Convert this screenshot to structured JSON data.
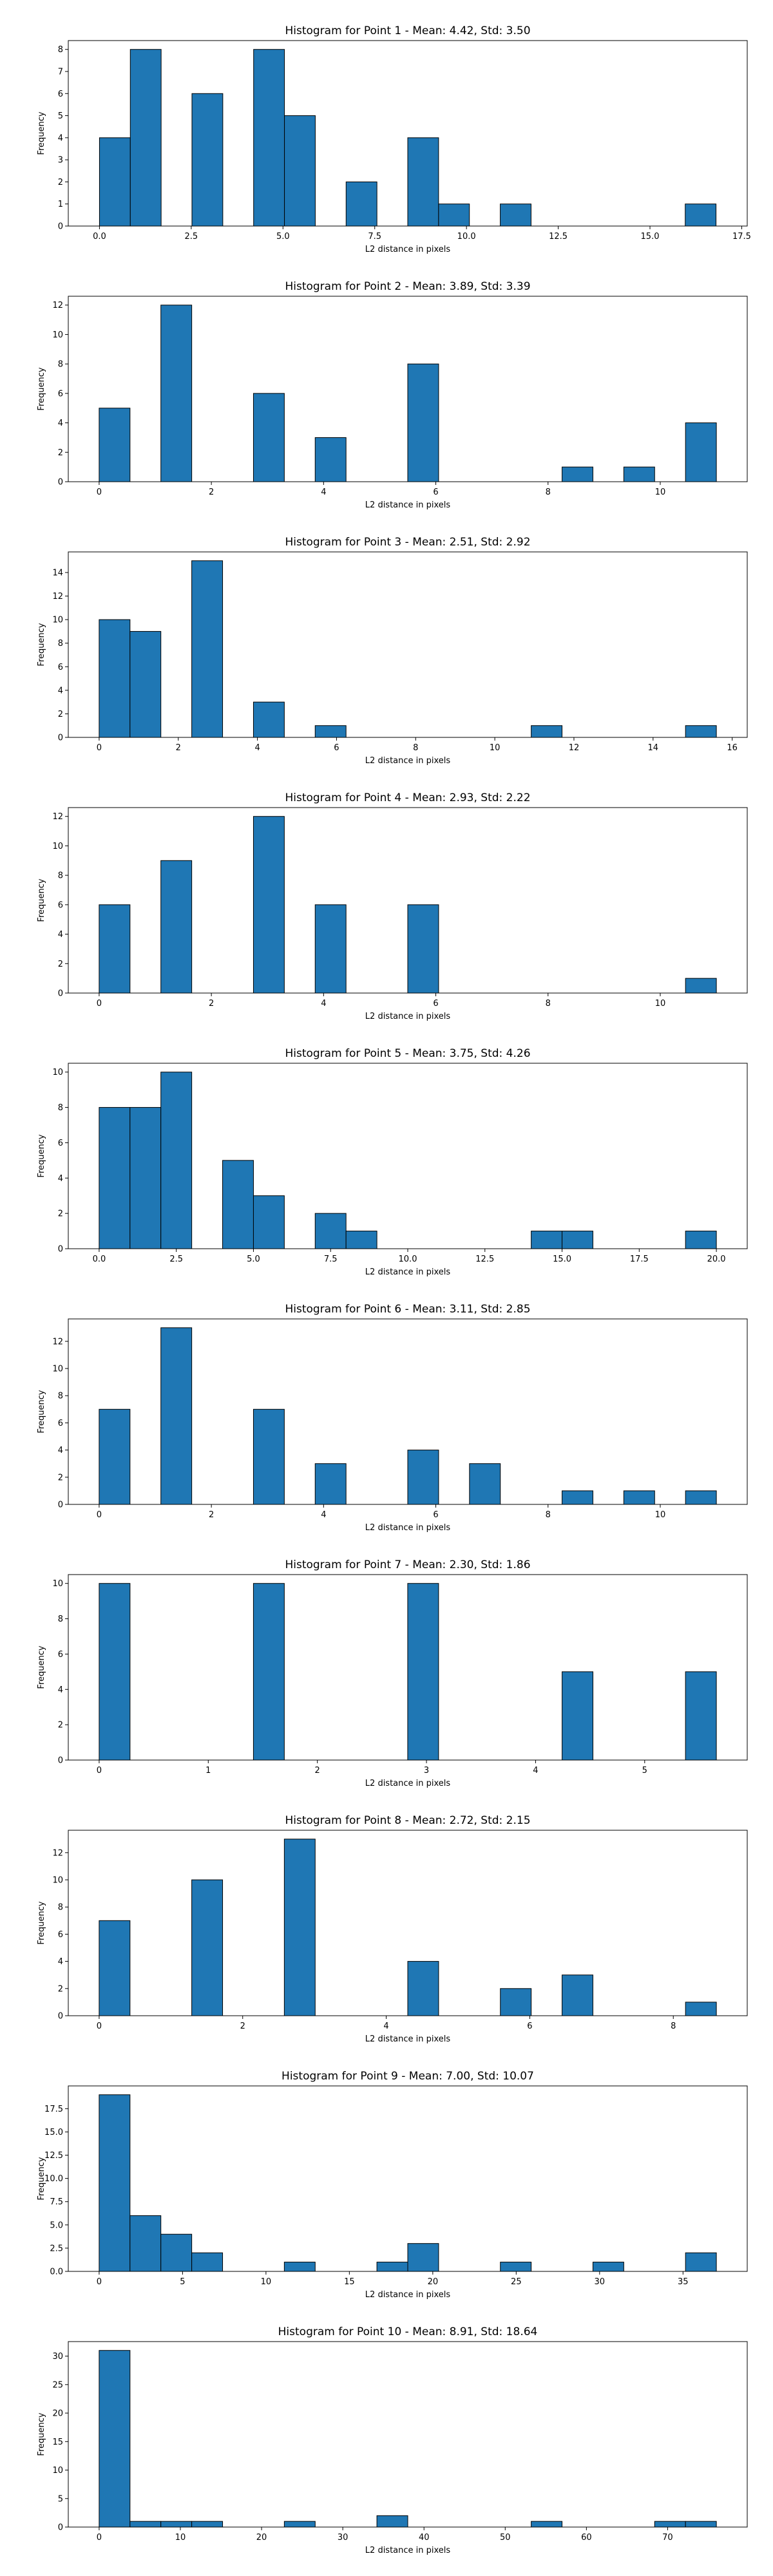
{
  "colors": {
    "bar_fill": "#1f77b4",
    "bar_edge": "#000000",
    "axis": "#000000"
  },
  "chart_data": [
    {
      "type": "bar",
      "title": "Histogram for Point 1 - Mean: 4.42, Std: 3.50",
      "xlabel": "L2 distance in pixels",
      "ylabel": "Frequency",
      "xlim": [
        -0.85,
        17.65
      ],
      "ylim": [
        0,
        8.4
      ],
      "xticks": [
        0.0,
        2.5,
        5.0,
        7.5,
        10.0,
        12.5,
        15.0,
        17.5
      ],
      "xtick_labels": [
        "0.0",
        "2.5",
        "5.0",
        "7.5",
        "10.0",
        "12.5",
        "15.0",
        "17.5"
      ],
      "yticks": [
        0,
        1,
        2,
        3,
        4,
        5,
        6,
        7,
        8
      ],
      "bins": [
        0,
        0.84,
        1.68,
        2.52,
        3.36,
        4.2,
        5.04,
        5.88,
        6.72,
        7.56,
        8.4,
        9.24,
        10.08,
        10.92,
        11.76,
        12.6,
        13.44,
        14.28,
        15.12,
        15.96,
        16.8
      ],
      "counts": [
        4,
        8,
        0,
        6,
        0,
        8,
        5,
        0,
        2,
        0,
        4,
        1,
        0,
        1,
        0,
        0,
        0,
        0,
        0,
        1
      ]
    },
    {
      "type": "bar",
      "title": "Histogram for Point 2 - Mean: 3.89, Std: 3.39",
      "xlabel": "L2 distance in pixels",
      "ylabel": "Frequency",
      "xlim": [
        -0.55,
        11.55
      ],
      "ylim": [
        0,
        12.6
      ],
      "xticks": [
        0,
        2,
        4,
        6,
        8,
        10
      ],
      "xtick_labels": [
        "0",
        "2",
        "4",
        "6",
        "8",
        "10"
      ],
      "yticks": [
        0,
        2,
        4,
        6,
        8,
        10,
        12
      ],
      "bins": [
        0,
        0.55,
        1.1,
        1.65,
        2.2,
        2.75,
        3.3,
        3.85,
        4.4,
        4.95,
        5.5,
        6.05,
        6.6,
        7.15,
        7.7,
        8.25,
        8.8,
        9.35,
        9.9,
        10.45,
        11.0
      ],
      "counts": [
        5,
        0,
        12,
        0,
        0,
        6,
        0,
        3,
        0,
        0,
        8,
        0,
        0,
        0,
        0,
        1,
        0,
        1,
        0,
        4
      ]
    },
    {
      "type": "bar",
      "title": "Histogram for Point 3 - Mean: 2.51, Std: 2.92",
      "xlabel": "L2 distance in pixels",
      "ylabel": "Frequency",
      "xlim": [
        -0.78,
        16.38
      ],
      "ylim": [
        0,
        15.75
      ],
      "xticks": [
        0,
        2,
        4,
        6,
        8,
        10,
        12,
        14,
        16
      ],
      "xtick_labels": [
        "0",
        "2",
        "4",
        "6",
        "8",
        "10",
        "12",
        "14",
        "16"
      ],
      "yticks": [
        0,
        2,
        4,
        6,
        8,
        10,
        12,
        14
      ],
      "bins": [
        0,
        0.78,
        1.56,
        2.34,
        3.12,
        3.9,
        4.68,
        5.46,
        6.24,
        7.02,
        7.8,
        8.58,
        9.36,
        10.14,
        10.92,
        11.7,
        12.48,
        13.26,
        14.04,
        14.82,
        15.6
      ],
      "counts": [
        10,
        9,
        0,
        15,
        0,
        3,
        0,
        1,
        0,
        0,
        0,
        0,
        0,
        0,
        1,
        0,
        0,
        0,
        0,
        1
      ]
    },
    {
      "type": "bar",
      "title": "Histogram for Point 4 - Mean: 2.93, Std: 2.22",
      "xlabel": "L2 distance in pixels",
      "ylabel": "Frequency",
      "xlim": [
        -0.55,
        11.55
      ],
      "ylim": [
        0,
        12.6
      ],
      "xticks": [
        0,
        2,
        4,
        6,
        8,
        10
      ],
      "xtick_labels": [
        "0",
        "2",
        "4",
        "6",
        "8",
        "10"
      ],
      "yticks": [
        0,
        2,
        4,
        6,
        8,
        10,
        12
      ],
      "bins": [
        0,
        0.55,
        1.1,
        1.65,
        2.2,
        2.75,
        3.3,
        3.85,
        4.4,
        4.95,
        5.5,
        6.05,
        6.6,
        7.15,
        7.7,
        8.25,
        8.8,
        9.35,
        9.9,
        10.45,
        11.0
      ],
      "counts": [
        6,
        0,
        9,
        0,
        0,
        12,
        0,
        6,
        0,
        0,
        6,
        0,
        0,
        0,
        0,
        0,
        0,
        0,
        0,
        1
      ]
    },
    {
      "type": "bar",
      "title": "Histogram for Point 5 - Mean: 3.75, Std: 4.26",
      "xlabel": "L2 distance in pixels",
      "ylabel": "Frequency",
      "xlim": [
        -1.0,
        21.0
      ],
      "ylim": [
        0,
        10.5
      ],
      "xticks": [
        0.0,
        2.5,
        5.0,
        7.5,
        10.0,
        12.5,
        15.0,
        17.5,
        20.0
      ],
      "xtick_labels": [
        "0.0",
        "2.5",
        "5.0",
        "7.5",
        "10.0",
        "12.5",
        "15.0",
        "17.5",
        "20.0"
      ],
      "yticks": [
        0,
        2,
        4,
        6,
        8,
        10
      ],
      "bins": [
        0,
        1,
        2,
        3,
        4,
        5,
        6,
        7,
        8,
        9,
        10,
        11,
        12,
        13,
        14,
        15,
        16,
        17,
        18,
        19,
        20
      ],
      "counts": [
        8,
        8,
        10,
        0,
        5,
        3,
        0,
        2,
        1,
        0,
        0,
        0,
        0,
        0,
        1,
        1,
        0,
        0,
        0,
        1
      ]
    },
    {
      "type": "bar",
      "title": "Histogram for Point 6 - Mean: 3.11, Std: 2.85",
      "xlabel": "L2 distance in pixels",
      "ylabel": "Frequency",
      "xlim": [
        -0.55,
        11.55
      ],
      "ylim": [
        0,
        13.65
      ],
      "xticks": [
        0,
        2,
        4,
        6,
        8,
        10
      ],
      "xtick_labels": [
        "0",
        "2",
        "4",
        "6",
        "8",
        "10"
      ],
      "yticks": [
        0,
        2,
        4,
        6,
        8,
        10,
        12
      ],
      "bins": [
        0,
        0.55,
        1.1,
        1.65,
        2.2,
        2.75,
        3.3,
        3.85,
        4.4,
        4.95,
        5.5,
        6.05,
        6.6,
        7.15,
        7.7,
        8.25,
        8.8,
        9.35,
        9.9,
        10.45,
        11.0
      ],
      "counts": [
        7,
        0,
        13,
        0,
        0,
        7,
        0,
        3,
        0,
        0,
        4,
        0,
        3,
        0,
        0,
        1,
        0,
        1,
        0,
        1
      ]
    },
    {
      "type": "bar",
      "title": "Histogram for Point 7 - Mean: 2.30, Std: 1.86",
      "xlabel": "L2 distance in pixels",
      "ylabel": "Frequency",
      "xlim": [
        -0.283,
        5.94
      ],
      "ylim": [
        0,
        10.5
      ],
      "xticks": [
        0,
        1,
        2,
        3,
        4,
        5
      ],
      "xtick_labels": [
        "0",
        "1",
        "2",
        "3",
        "4",
        "5"
      ],
      "yticks": [
        0,
        2,
        4,
        6,
        8,
        10
      ],
      "bins": [
        0,
        0.283,
        0.566,
        0.849,
        1.131,
        1.414,
        1.697,
        1.98,
        2.263,
        2.546,
        2.828,
        3.111,
        3.394,
        3.677,
        3.96,
        4.243,
        4.526,
        4.808,
        5.091,
        5.374,
        5.657
      ],
      "counts": [
        10,
        0,
        0,
        0,
        0,
        10,
        0,
        0,
        0,
        0,
        10,
        0,
        0,
        0,
        0,
        5,
        0,
        0,
        0,
        5
      ]
    },
    {
      "type": "bar",
      "title": "Histogram for Point 8 - Mean: 2.72, Std: 2.15",
      "xlabel": "L2 distance in pixels",
      "ylabel": "Frequency",
      "xlim": [
        -0.43,
        9.03
      ],
      "ylim": [
        0,
        13.65
      ],
      "xticks": [
        0,
        2,
        4,
        6,
        8
      ],
      "xtick_labels": [
        "0",
        "2",
        "4",
        "6",
        "8"
      ],
      "yticks": [
        0,
        2,
        4,
        6,
        8,
        10,
        12
      ],
      "bins": [
        0,
        0.43,
        0.86,
        1.29,
        1.72,
        2.15,
        2.58,
        3.01,
        3.44,
        3.87,
        4.3,
        4.73,
        5.16,
        5.59,
        6.02,
        6.45,
        6.88,
        7.31,
        7.74,
        8.17,
        8.6
      ],
      "counts": [
        7,
        0,
        0,
        10,
        0,
        0,
        13,
        0,
        0,
        0,
        4,
        0,
        0,
        2,
        0,
        3,
        0,
        0,
        0,
        1
      ]
    },
    {
      "type": "bar",
      "title": "Histogram for Point 9 - Mean: 7.00, Std: 10.07",
      "xlabel": "L2 distance in pixels",
      "ylabel": "Frequency",
      "xlim": [
        -1.85,
        38.85
      ],
      "ylim": [
        0,
        19.95
      ],
      "xticks": [
        0,
        5,
        10,
        15,
        20,
        25,
        30,
        35
      ],
      "xtick_labels": [
        "0",
        "5",
        "10",
        "15",
        "20",
        "25",
        "30",
        "35"
      ],
      "yticks": [
        0.0,
        2.5,
        5.0,
        7.5,
        10.0,
        12.5,
        15.0,
        17.5
      ],
      "ytick_labels": [
        "0.0",
        "2.5",
        "5.0",
        "7.5",
        "10.0",
        "12.5",
        "15.0",
        "17.5"
      ],
      "bins": [
        0,
        1.85,
        3.7,
        5.55,
        7.4,
        9.25,
        11.1,
        12.95,
        14.8,
        16.65,
        18.5,
        20.35,
        22.2,
        24.05,
        25.9,
        27.75,
        29.6,
        31.45,
        33.3,
        35.15,
        37.0
      ],
      "counts": [
        19,
        6,
        4,
        2,
        0,
        0,
        1,
        0,
        0,
        1,
        3,
        0,
        0,
        1,
        0,
        0,
        1,
        0,
        0,
        2
      ]
    },
    {
      "type": "bar",
      "title": "Histogram for Point 10 - Mean: 8.91, Std: 18.64",
      "xlabel": "L2 distance in pixels",
      "ylabel": "Frequency",
      "xlim": [
        -3.8,
        79.8
      ],
      "ylim": [
        0,
        32.55
      ],
      "xticks": [
        0,
        10,
        20,
        30,
        40,
        50,
        60,
        70
      ],
      "xtick_labels": [
        "0",
        "10",
        "20",
        "30",
        "40",
        "50",
        "60",
        "70"
      ],
      "yticks": [
        0,
        5,
        10,
        15,
        20,
        25,
        30
      ],
      "bins": [
        0,
        3.8,
        7.6,
        11.4,
        15.2,
        19.0,
        22.8,
        26.6,
        30.4,
        34.2,
        38.0,
        41.8,
        45.6,
        49.4,
        53.2,
        57.0,
        60.8,
        64.6,
        68.4,
        72.2,
        76.0
      ],
      "counts": [
        31,
        1,
        1,
        1,
        0,
        0,
        1,
        0,
        0,
        2,
        0,
        0,
        0,
        0,
        1,
        0,
        0,
        0,
        1,
        1
      ]
    }
  ]
}
